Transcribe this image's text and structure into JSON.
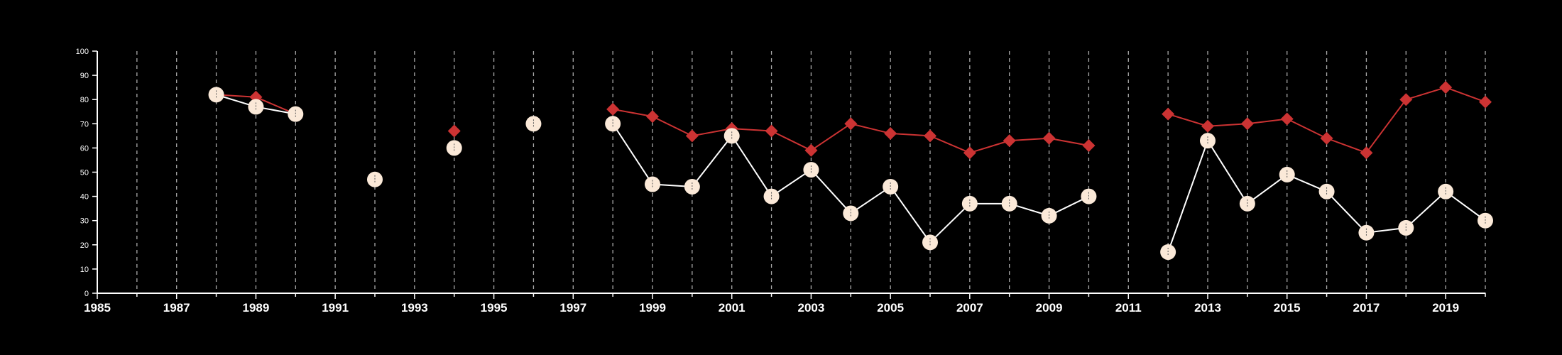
{
  "chart_data": {
    "type": "line",
    "title": "",
    "xlabel": "",
    "ylabel": "",
    "xlim": [
      1985,
      2020
    ],
    "ylim": [
      0,
      100
    ],
    "x_ticks": [
      1985,
      1987,
      1989,
      1991,
      1993,
      1995,
      1997,
      1999,
      2001,
      2003,
      2005,
      2007,
      2009,
      2011,
      2013,
      2015,
      2017,
      2019
    ],
    "y_ticks": [
      0,
      10,
      20,
      30,
      40,
      50,
      60,
      70,
      80,
      90,
      100
    ],
    "grid": {
      "vertical": true,
      "horizontal": false,
      "style": "dashed"
    },
    "background": "#000000",
    "axis_color": "#ffffff",
    "vertical_grid_color": "#aaaaaa",
    "series": [
      {
        "marker": "diamond",
        "color": "#cc3333",
        "points": [
          [
            1988,
            82
          ],
          [
            1989,
            81
          ],
          [
            1990,
            74
          ],
          [
            1991,
            null
          ],
          [
            1992,
            47
          ],
          [
            1993,
            null
          ],
          [
            1994,
            67
          ],
          [
            1995,
            null
          ],
          [
            1996,
            70
          ],
          [
            1997,
            null
          ],
          [
            1998,
            76
          ],
          [
            1999,
            73
          ],
          [
            2000,
            65
          ],
          [
            2001,
            68
          ],
          [
            2002,
            67
          ],
          [
            2003,
            59
          ],
          [
            2004,
            70
          ],
          [
            2005,
            66
          ],
          [
            2006,
            65
          ],
          [
            2007,
            58
          ],
          [
            2008,
            63
          ],
          [
            2009,
            64
          ],
          [
            2010,
            61
          ],
          [
            2011,
            null
          ],
          [
            2012,
            74
          ],
          [
            2013,
            69
          ],
          [
            2014,
            70
          ],
          [
            2015,
            72
          ],
          [
            2016,
            64
          ],
          [
            2017,
            58
          ],
          [
            2018,
            80
          ],
          [
            2019,
            85
          ],
          [
            2020,
            79
          ]
        ]
      },
      {
        "marker": "circle",
        "color": "#fbe9d8",
        "line_color": "#ffffff",
        "points": [
          [
            1988,
            82
          ],
          [
            1989,
            77
          ],
          [
            1990,
            74
          ],
          [
            1991,
            null
          ],
          [
            1992,
            47
          ],
          [
            1993,
            null
          ],
          [
            1994,
            60
          ],
          [
            1995,
            null
          ],
          [
            1996,
            70
          ],
          [
            1997,
            null
          ],
          [
            1998,
            70
          ],
          [
            1999,
            45
          ],
          [
            2000,
            44
          ],
          [
            2001,
            65
          ],
          [
            2002,
            40
          ],
          [
            2003,
            51
          ],
          [
            2004,
            33
          ],
          [
            2005,
            44
          ],
          [
            2006,
            21
          ],
          [
            2007,
            37
          ],
          [
            2008,
            37
          ],
          [
            2009,
            32
          ],
          [
            2010,
            40
          ],
          [
            2011,
            null
          ],
          [
            2012,
            17
          ],
          [
            2013,
            63
          ],
          [
            2014,
            37
          ],
          [
            2015,
            49
          ],
          [
            2016,
            42
          ],
          [
            2017,
            25
          ],
          [
            2018,
            27
          ],
          [
            2019,
            42
          ],
          [
            2020,
            30
          ]
        ]
      }
    ]
  }
}
